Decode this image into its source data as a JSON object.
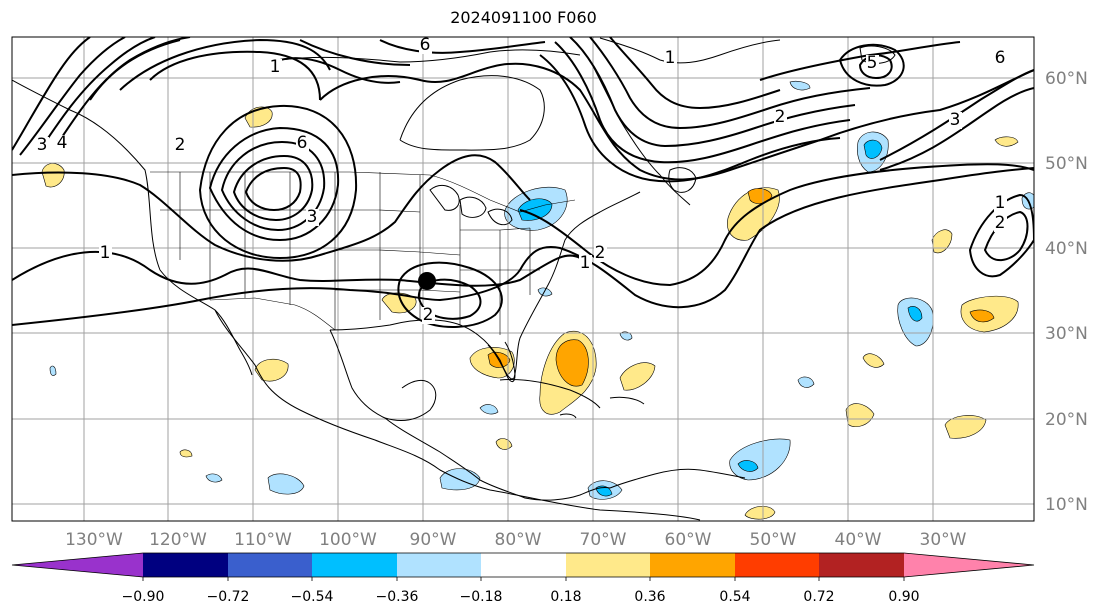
{
  "title": "2024091100 F060",
  "map": {
    "lon_labels": [
      "130°W",
      "120°W",
      "110°W",
      "100°W",
      "90°W",
      "80°W",
      "70°W",
      "60°W",
      "50°W",
      "40°W",
      "30°W"
    ],
    "lat_labels": [
      "60°N",
      "50°N",
      "40°N",
      "30°N",
      "20°N",
      "10°N"
    ],
    "contour_labels": [
      "1",
      "2",
      "6",
      "6",
      "3",
      "4",
      "3",
      "2",
      "1",
      "2",
      "1",
      "2",
      "5",
      "3",
      "6",
      "1",
      "2",
      "1"
    ],
    "marker": "storm-center"
  },
  "colorbar": {
    "labels": [
      "−0.90",
      "−0.72",
      "−0.54",
      "−0.36",
      "−0.18",
      "0.18",
      "0.36",
      "0.54",
      "0.72",
      "0.90"
    ],
    "colors": [
      "#9932cc",
      "#000080",
      "#3a5fcd",
      "#00bfff",
      "#b0e2ff",
      "#ffffff",
      "#ffe98a",
      "#ffa500",
      "#ff3d00",
      "#b22222",
      "#ff82ab"
    ]
  }
}
